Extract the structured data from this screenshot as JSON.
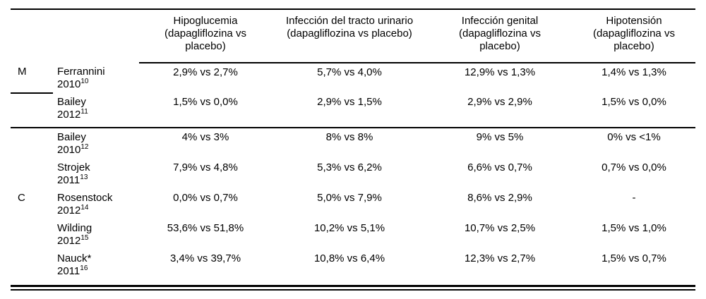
{
  "table": {
    "columns": [
      {
        "title": "Hipoglucemia",
        "subtitle": "(dapagliflozina vs placebo)"
      },
      {
        "title": "Infección del tracto urinario",
        "subtitle": "(dapagliflozina vs placebo)"
      },
      {
        "title": "Infección genital",
        "subtitle": "(dapagliflozina vs placebo)"
      },
      {
        "title": "Hipotensión",
        "subtitle": "(dapagliflozina vs placebo)"
      }
    ],
    "rows": [
      {
        "group": "M",
        "study": "Ferrannini",
        "year": "2010",
        "ref": "10",
        "values": [
          "2,9% vs 2,7%",
          "5,7% vs 4,0%",
          "12,9% vs 1,3%",
          "1,4% vs 1,3%"
        ]
      },
      {
        "group": "",
        "study": "Bailey",
        "year": "2012",
        "ref": "11",
        "values": [
          "1,5% vs 0,0%",
          "2,9% vs 1,5%",
          "2,9% vs 2,9%",
          "1,5% vs 0,0%"
        ]
      },
      {
        "group": "",
        "study": "Bailey",
        "year": "2010",
        "ref": "12",
        "values": [
          "4% vs 3%",
          "8% vs 8%",
          "9% vs 5%",
          "0% vs <1%"
        ]
      },
      {
        "group": "",
        "study": "Strojek",
        "year": "2011",
        "ref": "13",
        "values": [
          "7,9% vs 4,8%",
          "5,3% vs 6,2%",
          "6,6% vs 0,7%",
          "0,7% vs 0,0%"
        ]
      },
      {
        "group": "C",
        "study": "Rosenstock",
        "year": "2012",
        "ref": "14",
        "values": [
          "0,0% vs 0,7%",
          "5,0% vs 7,9%",
          "8,6% vs 2,9%",
          "-"
        ]
      },
      {
        "group": "",
        "study": "Wilding",
        "year": "2012",
        "ref": "15",
        "values": [
          "53,6% vs 51,8%",
          "10,2% vs 5,1%",
          "10,7% vs 2,5%",
          "1,5% vs 1,0%"
        ]
      },
      {
        "group": "",
        "study": "Nauck*",
        "year": "2011",
        "ref": "16",
        "values": [
          "3,4% vs 39,7%",
          "10,8% vs 6,4%",
          "12,3% vs 2,7%",
          "1,5% vs 0,7%"
        ]
      }
    ]
  }
}
